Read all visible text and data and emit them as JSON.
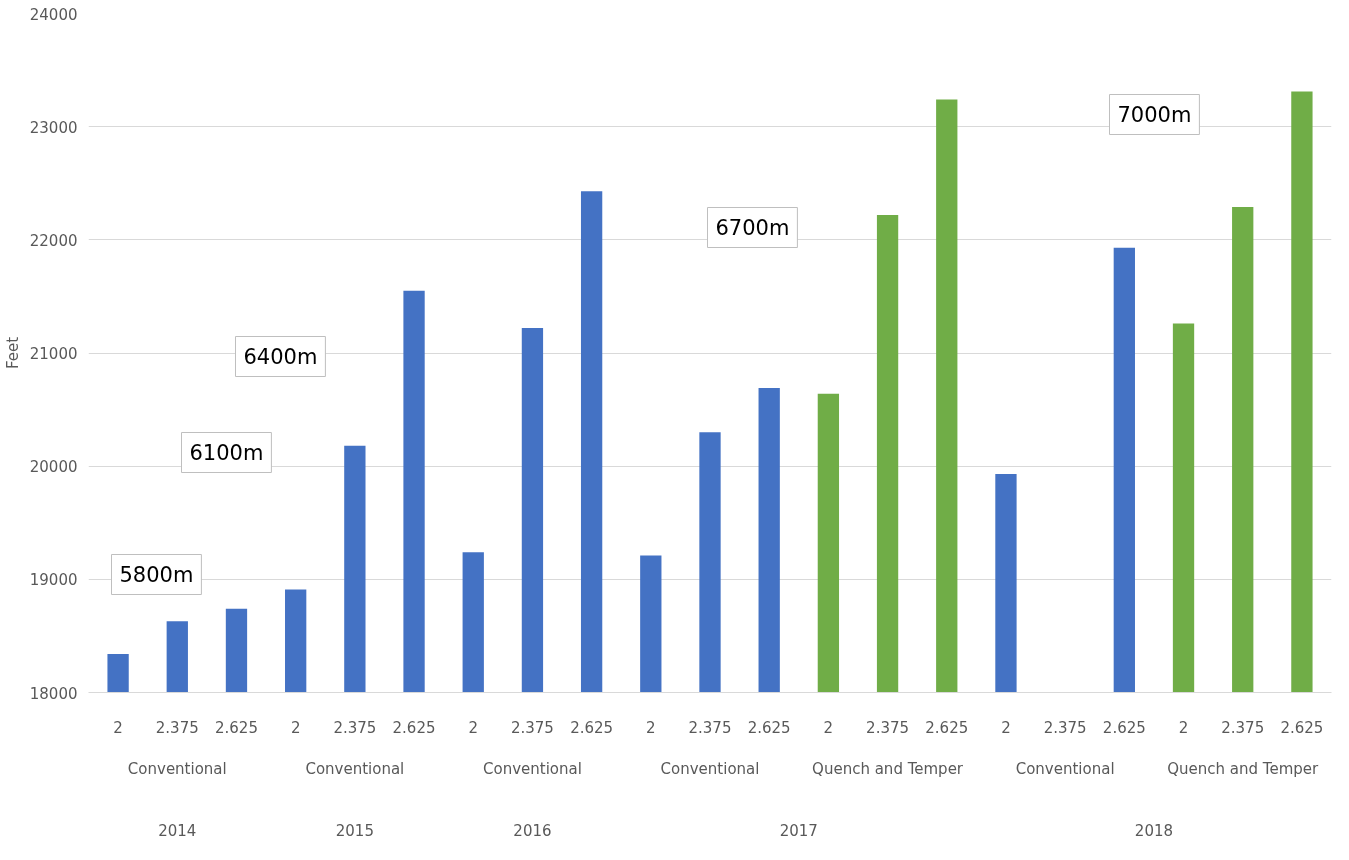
{
  "chart_data": {
    "type": "bar",
    "ylabel": "Feet",
    "categories": [
      "2",
      "2.375",
      "2.625",
      "2",
      "2.375",
      "2.625",
      "2",
      "2.375",
      "2.625",
      "2",
      "2.375",
      "2.625",
      "2",
      "2.375",
      "2.625",
      "2",
      "2.375",
      "2.625",
      "2",
      "2.375",
      "2.625"
    ],
    "values": [
      18340,
      18630,
      18740,
      18910,
      20180,
      21550,
      19240,
      21220,
      22430,
      19210,
      20300,
      20690,
      20640,
      22220,
      23240,
      19930,
      null,
      21930,
      21260,
      22290,
      23310
    ],
    "colors": [
      "#4472c4",
      "#4472c4",
      "#4472c4",
      "#4472c4",
      "#4472c4",
      "#4472c4",
      "#4472c4",
      "#4472c4",
      "#4472c4",
      "#4472c4",
      "#4472c4",
      "#4472c4",
      "#70ad47",
      "#70ad47",
      "#70ad47",
      "#4472c4",
      "#4472c4",
      "#4472c4",
      "#70ad47",
      "#70ad47",
      "#70ad47"
    ],
    "ylim": [
      18000,
      24000
    ],
    "yticks": [
      18000,
      19000,
      20000,
      21000,
      22000,
      23000,
      24000
    ],
    "grid": "y",
    "annotations": [
      "5800m",
      "6100m",
      "6400m",
      "6700m",
      "7000m",
      "Conventional",
      "Conventional",
      "Conventional",
      "Conventional",
      "Quench and Temper",
      "Conventional",
      "Quench and Temper",
      "2014",
      "2015",
      "2016",
      "2017",
      "2018"
    ]
  }
}
